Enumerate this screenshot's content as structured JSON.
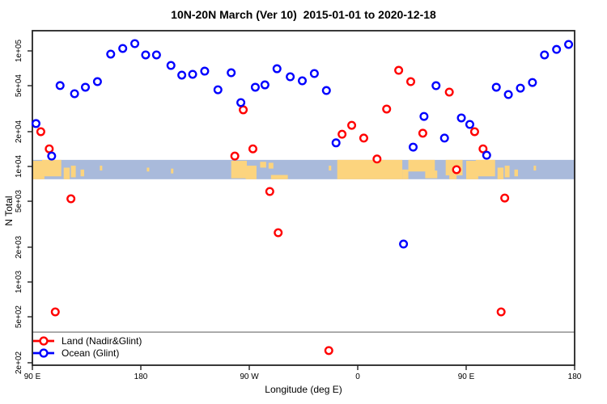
{
  "chart": {
    "title": "10N-20N March (Ver 10)  2015-01-01 to 2020-12-18",
    "xlabel": "Longitude (deg E)",
    "ylabel": "N Total"
  },
  "legend": {
    "items": [
      {
        "label": "Land (Nadir&Glint)",
        "color": "#ff0000"
      },
      {
        "label": "Ocean (Glint)",
        "color": "#0000ff"
      }
    ]
  },
  "chart_data": {
    "type": "scatter",
    "title": "10N-20N March (Ver 10)  2015-01-01 to 2020-12-18",
    "xlabel": "Longitude (deg E)",
    "ylabel": "N Total",
    "x_axis": {
      "note": "longitude axis runs 90E eastward wrapping through 180, 90W, 0, 90E to 180; positions given in degrees along axis 0-450",
      "range_axis_deg": [
        0,
        450
      ],
      "tick_axis_deg": [
        0,
        90,
        180,
        270,
        360,
        450
      ],
      "tick_labels": [
        "90 E",
        "180",
        "90 W",
        "0",
        "90 E",
        "180"
      ]
    },
    "y_axis": {
      "scale": "log10",
      "tick_values": [
        100000,
        50000,
        20000,
        10000,
        5000,
        2000,
        1000,
        500,
        200
      ],
      "tick_labels": [
        "1e+05",
        "5e+04",
        "2e+04",
        "1e+04",
        "5e+03",
        "2e+03",
        "1e+03",
        "5e+02",
        "2e+02"
      ],
      "range": [
        170,
        200000
      ]
    },
    "reference_line": {
      "value": 368,
      "color": "#999999"
    },
    "map_band": {
      "description": "world-map strip of the 10N-20N latitude band drawn across the plot",
      "top_value": 11400,
      "bottom_value": 7750,
      "ocean_color": "#a9badb",
      "land_color": "#fcd47e",
      "land_segments_axis_deg": [
        [
          0,
          10,
          0.05,
          1
        ],
        [
          8,
          24,
          0,
          0.85
        ],
        [
          26,
          31,
          0.4,
          1
        ],
        [
          32,
          36,
          0.3,
          0.9
        ],
        [
          40,
          43,
          0.5,
          0.85
        ],
        [
          56,
          58,
          0.3,
          0.55
        ],
        [
          95,
          97,
          0.4,
          0.6
        ],
        [
          115,
          117,
          0.45,
          0.7
        ],
        [
          165,
          178,
          0.05,
          0.95
        ],
        [
          177,
          186,
          0.3,
          1
        ],
        [
          189,
          194,
          0.1,
          0.4
        ],
        [
          196,
          200,
          0.15,
          0.45
        ],
        [
          198,
          212,
          0.78,
          1
        ],
        [
          246,
          248,
          0.3,
          0.55
        ],
        [
          253,
          307,
          0,
          1
        ],
        [
          307,
          312,
          0.5,
          1
        ],
        [
          312,
          334,
          0,
          0.6
        ],
        [
          326,
          336,
          0.55,
          0.95
        ],
        [
          343,
          357,
          0,
          0.8
        ],
        [
          346,
          352,
          0.8,
          1
        ],
        [
          360,
          370,
          0.05,
          1
        ],
        [
          368,
          384,
          0,
          0.85
        ],
        [
          386,
          391,
          0.4,
          1
        ],
        [
          392,
          396,
          0.3,
          0.9
        ],
        [
          400,
          403,
          0.5,
          0.85
        ],
        [
          416,
          418,
          0.3,
          0.55
        ]
      ]
    },
    "series": [
      {
        "name": "Land (Nadir&Glint)",
        "color": "#ff0000",
        "points": [
          [
            7,
            20000
          ],
          [
            14,
            14200
          ],
          [
            19,
            551
          ],
          [
            32,
            5250
          ],
          [
            168,
            12300
          ],
          [
            175,
            30900
          ],
          [
            183,
            14200
          ],
          [
            197,
            6070
          ],
          [
            204,
            2670
          ],
          [
            246,
            255
          ],
          [
            257,
            19000
          ],
          [
            265,
            22700
          ],
          [
            275,
            17600
          ],
          [
            286,
            11600
          ],
          [
            294,
            31400
          ],
          [
            304,
            67900
          ],
          [
            314,
            54200
          ],
          [
            324,
            19400
          ],
          [
            346,
            44000
          ],
          [
            352,
            9380
          ],
          [
            367,
            20000
          ],
          [
            374,
            14200
          ],
          [
            389,
            551
          ],
          [
            392,
            5330
          ]
        ]
      },
      {
        "name": "Ocean (Glint)",
        "color": "#0000ff",
        "points": [
          [
            3,
            23500
          ],
          [
            16,
            12300
          ],
          [
            23,
            50100
          ],
          [
            35,
            42600
          ],
          [
            44,
            48500
          ],
          [
            54,
            54200
          ],
          [
            65,
            93800
          ],
          [
            75,
            105000
          ],
          [
            85,
            115600
          ],
          [
            94,
            92300
          ],
          [
            103,
            92300
          ],
          [
            115,
            74800
          ],
          [
            124,
            61700
          ],
          [
            133,
            62700
          ],
          [
            143,
            66800
          ],
          [
            154,
            46100
          ],
          [
            165,
            64700
          ],
          [
            173,
            35700
          ],
          [
            185,
            48500
          ],
          [
            193,
            50800
          ],
          [
            203,
            70100
          ],
          [
            214,
            59700
          ],
          [
            224,
            55100
          ],
          [
            234,
            63700
          ],
          [
            244,
            45400
          ],
          [
            252,
            16000
          ],
          [
            308,
            2130
          ],
          [
            316,
            14700
          ],
          [
            325,
            27100
          ],
          [
            335,
            50000
          ],
          [
            342,
            17600
          ],
          [
            356,
            26300
          ],
          [
            363,
            23100
          ],
          [
            377,
            12500
          ],
          [
            385,
            48500
          ],
          [
            395,
            41900
          ],
          [
            405,
            47600
          ],
          [
            415,
            53300
          ],
          [
            425,
            92300
          ],
          [
            435,
            103000
          ],
          [
            445,
            113800
          ]
        ]
      }
    ],
    "legend_position": "bottom-left",
    "grid": false
  }
}
